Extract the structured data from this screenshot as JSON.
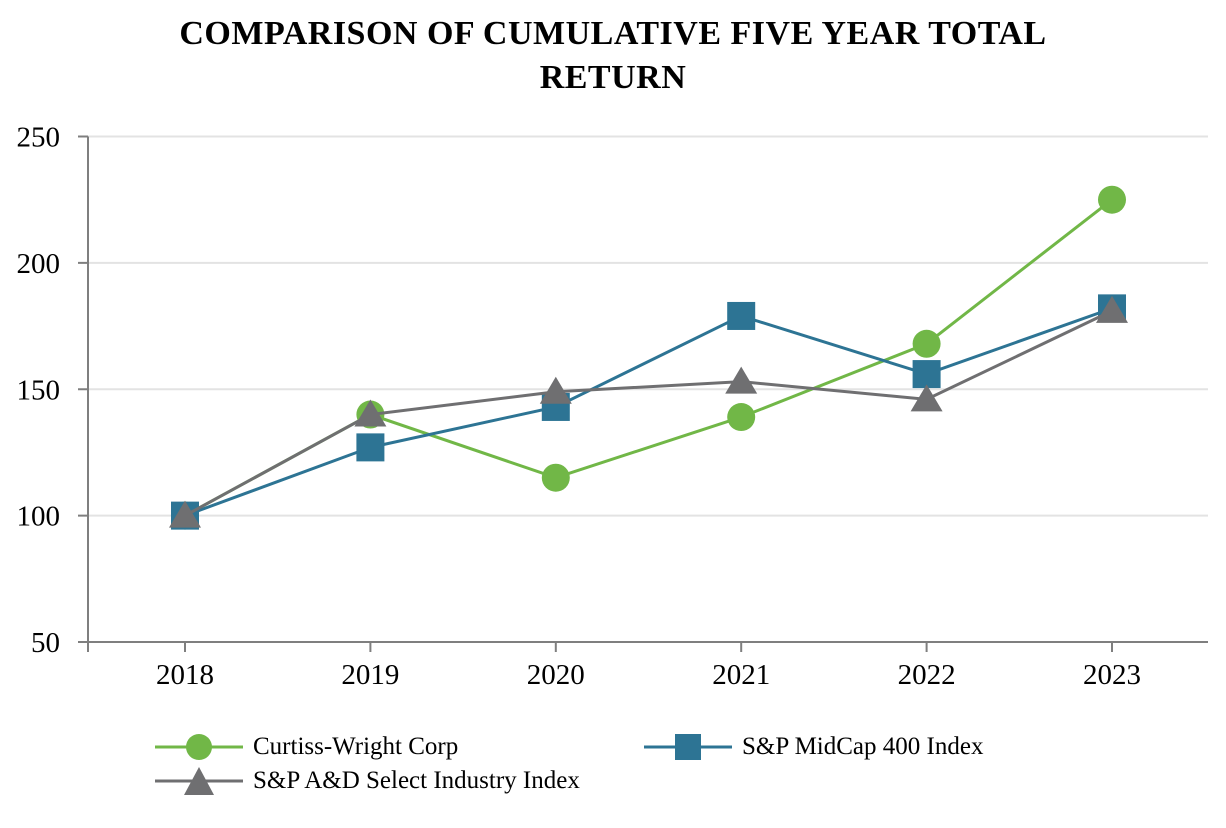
{
  "title": "COMPARISON OF CUMULATIVE FIVE YEAR TOTAL RETURN",
  "title_lines": [
    "COMPARISON OF CUMULATIVE FIVE YEAR TOTAL",
    "RETURN"
  ],
  "chart_data": {
    "type": "line",
    "categories": [
      "2018",
      "2019",
      "2020",
      "2021",
      "2022",
      "2023"
    ],
    "series": [
      {
        "name": "Curtiss-Wright Corp",
        "marker": "circle",
        "color": "#71b747",
        "values": [
          100,
          140,
          115,
          139,
          168,
          225
        ]
      },
      {
        "name": "S&P MidCap 400 Index",
        "marker": "square",
        "color": "#2d7494",
        "values": [
          100,
          127,
          143,
          179,
          156,
          182
        ]
      },
      {
        "name": "S&P A&D Select Industry Index",
        "marker": "triangle",
        "color": "#6f6f71",
        "values": [
          100,
          140,
          149,
          153,
          146,
          181
        ]
      }
    ],
    "xlabel": "",
    "ylabel": "",
    "ylim": [
      50,
      250
    ],
    "yticks": [
      50,
      100,
      150,
      200,
      250
    ],
    "grid": true,
    "legend_position": "bottom",
    "axis_color": "#7f7f7f",
    "grid_color": "#e3e3e3",
    "tick_label_color": "#000000"
  }
}
